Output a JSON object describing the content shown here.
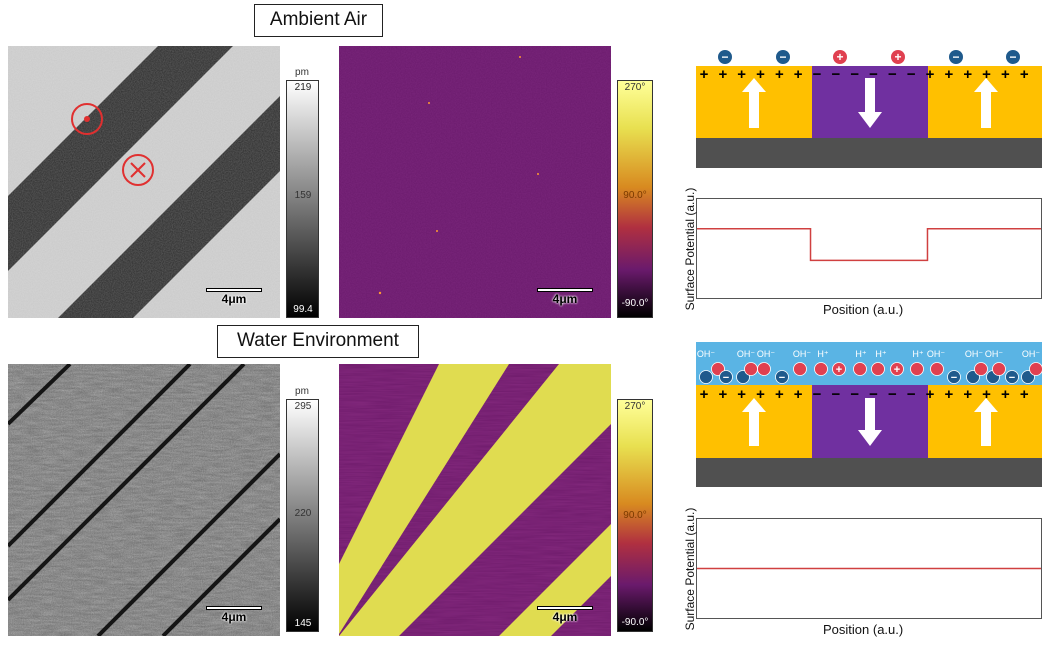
{
  "rows": {
    "top": {
      "title": "Ambient Air",
      "height_cbar": {
        "unit": "pm",
        "max": "219",
        "mid": "159",
        "min": "99.4"
      },
      "phase_cbar": {
        "max": "270°",
        "mid": "90.0°",
        "min": "-90.0°"
      },
      "scalebar": "4μm",
      "schematic": {
        "top_charges": [
          "+",
          "+",
          "+",
          "+",
          "+",
          "+",
          "−",
          "−",
          "−",
          "−",
          "−",
          "−",
          "+",
          "+",
          "+",
          "+",
          "+",
          "+"
        ],
        "ions": [
          "−",
          "−",
          "+",
          "+",
          "−",
          "−"
        ]
      },
      "plot": {
        "ylabel": "Surface Potential (a.u.)",
        "xlabel": "Position (a.u.)",
        "profile": [
          0.3,
          0.3,
          0.62,
          0.3
        ],
        "profile_x": [
          0,
          0.33,
          0.67,
          1
        ]
      }
    },
    "bottom": {
      "title": "Water Environment",
      "height_cbar": {
        "unit": "pm",
        "max": "295",
        "mid": "220",
        "min": "145"
      },
      "phase_cbar": {
        "max": "270°",
        "mid": "90.0°",
        "min": "-90.0°"
      },
      "scalebar": "4μm",
      "schematic": {
        "top_charges": [
          "+",
          "+",
          "+",
          "+",
          "+",
          "+",
          "−",
          "−",
          "−",
          "−",
          "−",
          "−",
          "+",
          "+",
          "+",
          "+",
          "+",
          "+"
        ],
        "ion_labels": [
          "OH⁻",
          "OH⁻",
          "OH⁻",
          "OH⁻",
          "H⁺",
          "H⁺",
          "H⁺",
          "H⁺",
          "OH⁻",
          "OH⁻",
          "OH⁻",
          "OH⁻"
        ]
      },
      "plot": {
        "ylabel": "Surface Potential (a.u.)",
        "xlabel": "Position (a.u.)",
        "profile": [
          0.5
        ]
      }
    }
  },
  "colors": {
    "yellow_domain": "#ffc000",
    "purple_domain": "#7030a0",
    "substrate": "#505050",
    "water": "#5ab4e4",
    "ion_red": "#e04050",
    "ion_blue": "#1f5a8c",
    "profile_line": "#d04040",
    "marker_red": "#e03030"
  }
}
